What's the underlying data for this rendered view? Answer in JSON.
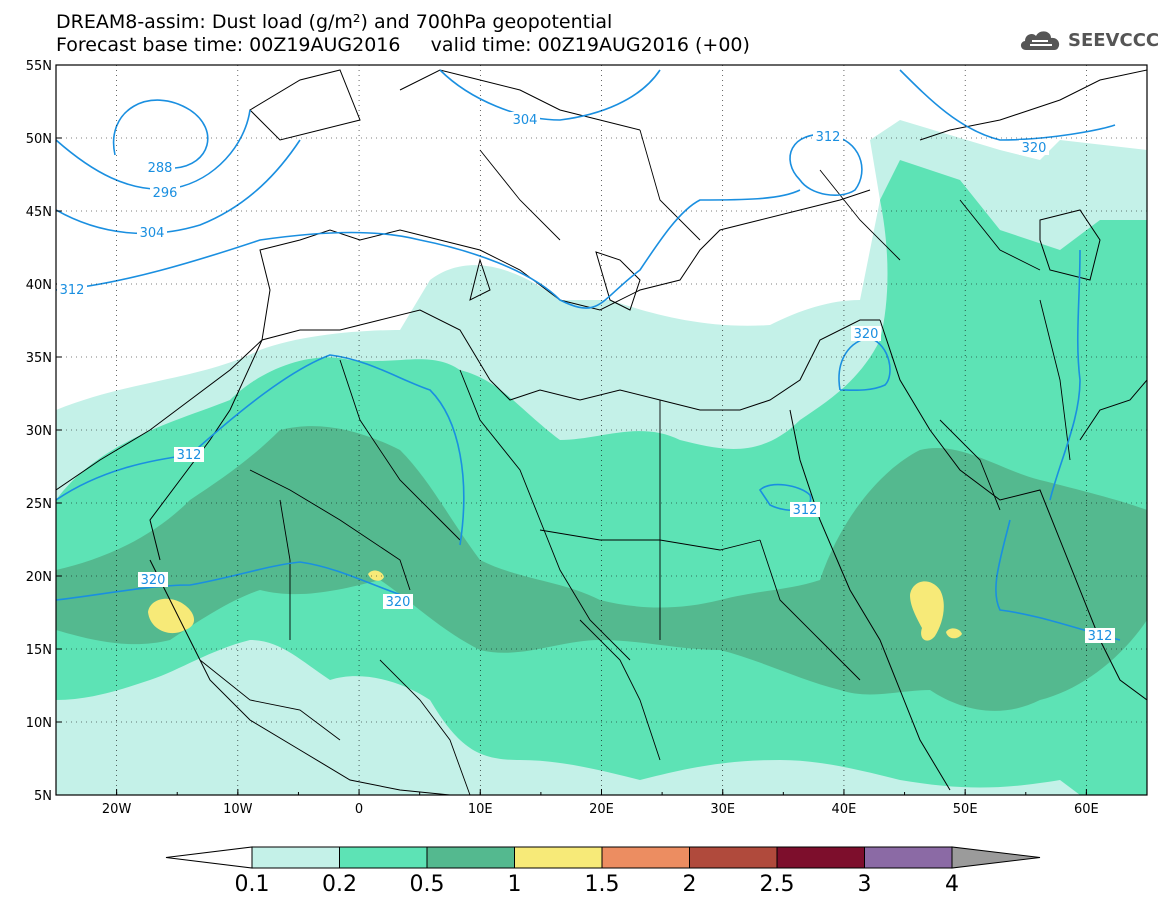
{
  "title": {
    "line1": "DREAM8-assim: Dust load (g/m²) and 700hPa geopotential",
    "line2": "Forecast base time: 00Z19AUG2016     valid time: 00Z19AUG2016 (+00)"
  },
  "logo": {
    "text": "SEEVCCC",
    "icon": "cloud-icon"
  },
  "map": {
    "lon_range": [
      -25,
      65
    ],
    "lat_range": [
      5,
      55
    ],
    "lon_ticks": [
      "20W",
      "10W",
      "0",
      "10E",
      "20E",
      "30E",
      "40E",
      "50E",
      "60E"
    ],
    "lat_ticks": [
      "55N",
      "50N",
      "45N",
      "40N",
      "35N",
      "30N",
      "25N",
      "20N",
      "15N",
      "10N",
      "5N"
    ],
    "contour_color": "#1a8fe0",
    "contour_labels": [
      "288",
      "296",
      "304",
      "312",
      "304",
      "312",
      "320",
      "312",
      "320",
      "320",
      "320",
      "312",
      "312"
    ]
  },
  "colorbar": {
    "levels": [
      "0.1",
      "0.2",
      "0.5",
      "1",
      "1.5",
      "2",
      "2.5",
      "3",
      "4"
    ],
    "colors": [
      "#c4f1e8",
      "#5de3b5",
      "#54b98f",
      "#f7ea78",
      "#ec8d61",
      "#b04a3c",
      "#7d0e2c",
      "#8b6aa5"
    ],
    "under_color": "#ffffff",
    "over_color": "#9b9b9b"
  }
}
